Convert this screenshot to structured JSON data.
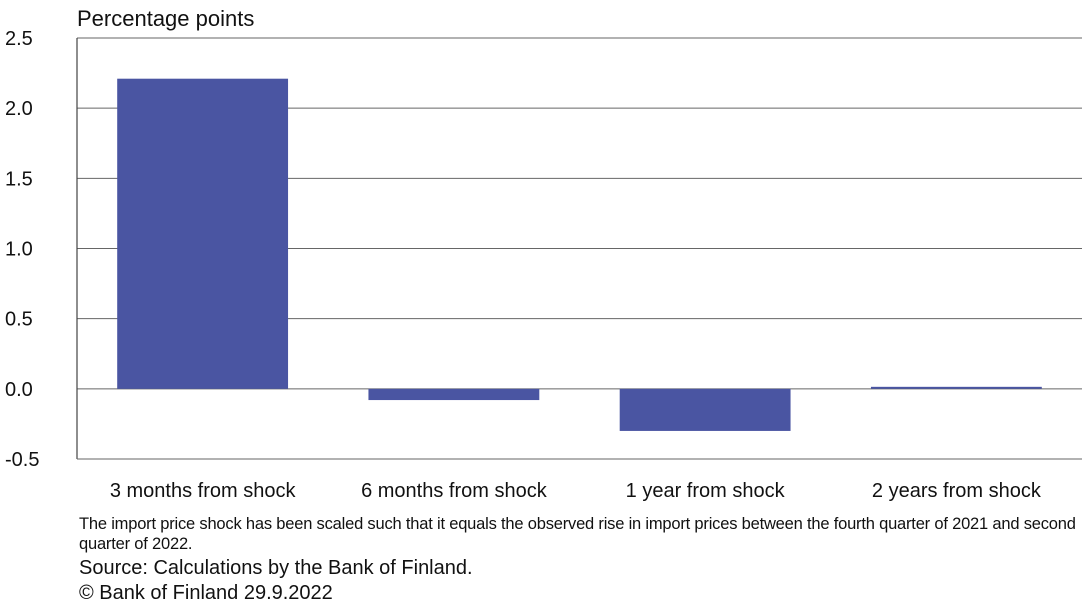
{
  "chart_data": {
    "type": "bar",
    "ylabel": "Percentage points",
    "categories": [
      "3 months from shock",
      "6 months from shock",
      "1 year from shock",
      "2 years from shock"
    ],
    "series": [
      {
        "values": [
          2.21,
          -0.08,
          -0.3,
          0.01
        ]
      }
    ],
    "ylim": [
      -0.5,
      2.5
    ],
    "yticks": [
      "2.5",
      "2.0",
      "1.5",
      "1.0",
      "0.5",
      "0.0",
      "-0.5"
    ],
    "grid": true,
    "bar_color": "#4a55a2"
  },
  "notes": {
    "scaling_note": "The import price shock has been scaled such that it equals the observed rise in import prices between the fourth quarter of 2021 and second quarter of 2022.",
    "source": "Source: Calculations by the Bank of Finland.",
    "copyright": "© Bank of Finland 29.9.2022"
  }
}
